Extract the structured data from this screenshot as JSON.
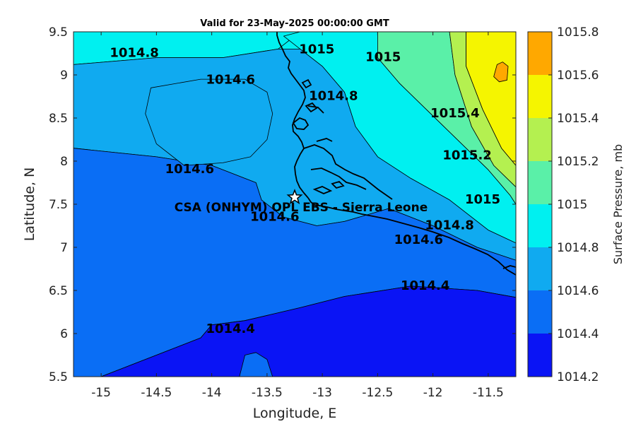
{
  "title": "Valid for 23-May-2025 00:00:00 GMT",
  "x_axis": {
    "label": "Longitude, E",
    "range": [
      -15.25,
      -11.25
    ],
    "ticks": [
      -15,
      -14.5,
      -14,
      -13.5,
      -13,
      -12.5,
      -12,
      -11.5
    ],
    "tick_labels": [
      "-15",
      "-14.5",
      "-14",
      "-13.5",
      "-13",
      "-12.5",
      "-12",
      "-11.5"
    ]
  },
  "y_axis": {
    "label": "Latitude, N",
    "range": [
      5.5,
      9.5
    ],
    "ticks": [
      5.5,
      6,
      6.5,
      7,
      7.5,
      8,
      8.5,
      9,
      9.5
    ],
    "tick_labels": [
      "5.5",
      "6",
      "6.5",
      "7",
      "7.5",
      "8",
      "8.5",
      "9",
      "9.5"
    ]
  },
  "colorbar": {
    "label": "Surface Pressure, mb",
    "levels": [
      1014.2,
      1014.4,
      1014.6,
      1014.8,
      1015,
      1015.2,
      1015.4,
      1015.6,
      1015.8
    ],
    "tick_labels": [
      "1014.2",
      "1014.4",
      "1014.6",
      "1014.8",
      "1015",
      "1015.2",
      "1015.4",
      "1015.6",
      "1015.8"
    ],
    "colors": [
      "#0a14f5",
      "#0a6ef5",
      "#10aaf0",
      "#00f0f0",
      "#5af0a8",
      "#b4f050",
      "#f5f500",
      "#ffa800",
      "#ff5a00"
    ]
  },
  "contour_labels": [
    {
      "text": "1014.8",
      "lon": -14.7,
      "lat": 9.25
    },
    {
      "text": "1015",
      "lon": -13.05,
      "lat": 9.29
    },
    {
      "text": "1015",
      "lon": -12.45,
      "lat": 9.2
    },
    {
      "text": "1014.6",
      "lon": -13.83,
      "lat": 8.94
    },
    {
      "text": "1014.8",
      "lon": -12.9,
      "lat": 8.75
    },
    {
      "text": "1015.4",
      "lon": -11.8,
      "lat": 8.55
    },
    {
      "text": "1015.2",
      "lon": -11.69,
      "lat": 8.06
    },
    {
      "text": "1014.6",
      "lon": -14.2,
      "lat": 7.9
    },
    {
      "text": "1015",
      "lon": -11.55,
      "lat": 7.55
    },
    {
      "text": "1014.8",
      "lon": -11.85,
      "lat": 7.25
    },
    {
      "text": "1014.6",
      "lon": -13.43,
      "lat": 7.35
    },
    {
      "text": "1014.6",
      "lon": -12.13,
      "lat": 7.08
    },
    {
      "text": "1014.4",
      "lon": -12.07,
      "lat": 6.55
    },
    {
      "text": "1014.4",
      "lon": -13.83,
      "lat": 6.05
    }
  ],
  "station": {
    "name": "CSA (ONHYM) OPL EBS  - Sierra Leone",
    "lon": -13.25,
    "lat": 7.58,
    "marker": "star-icon"
  },
  "regions": [
    {
      "level_index": 3,
      "points": [
        [
          -15.25,
          9.5
        ],
        [
          -13.2,
          9.5
        ],
        [
          -13.4,
          9.3
        ],
        [
          -13.9,
          9.2
        ],
        [
          -14.5,
          9.2
        ],
        [
          -15.25,
          9.12
        ]
      ]
    },
    {
      "level_index": 3,
      "points": [
        [
          -13.2,
          9.5
        ],
        [
          -12.5,
          9.5
        ],
        [
          -12.5,
          9.2
        ],
        [
          -12.3,
          8.9
        ],
        [
          -11.9,
          8.4
        ],
        [
          -11.5,
          7.9
        ],
        [
          -11.3,
          7.6
        ],
        [
          -11.25,
          7.5
        ],
        [
          -11.25,
          7.05
        ],
        [
          -11.5,
          7.2
        ],
        [
          -11.85,
          7.55
        ],
        [
          -12.2,
          7.8
        ],
        [
          -12.5,
          8.05
        ],
        [
          -12.7,
          8.4
        ],
        [
          -12.8,
          8.8
        ],
        [
          -13.0,
          9.1
        ],
        [
          -13.2,
          9.3
        ],
        [
          -13.35,
          9.45
        ]
      ]
    },
    {
      "level_index": 4,
      "points": [
        [
          -12.5,
          9.5
        ],
        [
          -12.55,
          9.5
        ],
        [
          -11.85,
          9.5
        ],
        [
          -11.8,
          9.0
        ],
        [
          -11.65,
          8.4
        ],
        [
          -11.45,
          7.95
        ],
        [
          -11.25,
          7.7
        ],
        [
          -11.25,
          7.5
        ],
        [
          -11.3,
          7.6
        ],
        [
          -11.5,
          7.9
        ],
        [
          -11.9,
          8.4
        ],
        [
          -12.3,
          8.9
        ],
        [
          -12.5,
          9.2
        ]
      ]
    },
    {
      "level_index": 5,
      "points": [
        [
          -11.85,
          9.5
        ],
        [
          -11.7,
          9.5
        ],
        [
          -11.7,
          9.1
        ],
        [
          -11.55,
          8.6
        ],
        [
          -11.38,
          8.15
        ],
        [
          -11.25,
          7.95
        ],
        [
          -11.25,
          7.7
        ],
        [
          -11.45,
          7.95
        ],
        [
          -11.65,
          8.4
        ],
        [
          -11.8,
          9.0
        ]
      ]
    },
    {
      "level_index": 6,
      "points": [
        [
          -11.7,
          9.5
        ],
        [
          -11.25,
          9.5
        ],
        [
          -11.25,
          7.95
        ],
        [
          -11.38,
          8.15
        ],
        [
          -11.55,
          8.6
        ],
        [
          -11.7,
          9.1
        ]
      ]
    },
    {
      "level_index": 7,
      "points": [
        [
          -11.42,
          9.12
        ],
        [
          -11.37,
          9.15
        ],
        [
          -11.32,
          9.1
        ],
        [
          -11.33,
          8.94
        ],
        [
          -11.4,
          8.92
        ],
        [
          -11.45,
          8.98
        ]
      ]
    },
    {
      "level_index": 2,
      "points": [
        [
          -15.25,
          9.12
        ],
        [
          -14.5,
          9.2
        ],
        [
          -13.9,
          9.2
        ],
        [
          -13.4,
          9.3
        ],
        [
          -13.2,
          9.3
        ],
        [
          -13.0,
          9.1
        ],
        [
          -12.8,
          8.8
        ],
        [
          -12.7,
          8.4
        ],
        [
          -12.5,
          8.05
        ],
        [
          -12.2,
          7.8
        ],
        [
          -11.85,
          7.55
        ],
        [
          -11.5,
          7.2
        ],
        [
          -11.25,
          7.05
        ],
        [
          -11.25,
          6.85
        ],
        [
          -11.6,
          7.0
        ],
        [
          -12.0,
          7.25
        ],
        [
          -12.4,
          7.45
        ],
        [
          -12.8,
          7.3
        ],
        [
          -13.05,
          7.25
        ],
        [
          -13.35,
          7.35
        ],
        [
          -13.55,
          7.55
        ],
        [
          -13.6,
          7.75
        ],
        [
          -14.0,
          7.95
        ],
        [
          -14.5,
          8.05
        ],
        [
          -15.25,
          8.15
        ]
      ]
    },
    {
      "level_index": 1,
      "points": [
        [
          -15.25,
          8.15
        ],
        [
          -14.5,
          8.05
        ],
        [
          -14.0,
          7.95
        ],
        [
          -13.6,
          7.75
        ],
        [
          -13.55,
          7.55
        ],
        [
          -13.35,
          7.35
        ],
        [
          -13.05,
          7.25
        ],
        [
          -12.8,
          7.3
        ],
        [
          -12.4,
          7.45
        ],
        [
          -12.0,
          7.25
        ],
        [
          -11.6,
          7.0
        ],
        [
          -11.25,
          6.85
        ],
        [
          -11.25,
          6.42
        ],
        [
          -11.6,
          6.5
        ],
        [
          -12.2,
          6.55
        ],
        [
          -12.8,
          6.43
        ],
        [
          -13.2,
          6.3
        ],
        [
          -13.7,
          6.15
        ],
        [
          -14.0,
          6.1
        ],
        [
          -14.1,
          5.95
        ],
        [
          -14.6,
          5.7
        ],
        [
          -15.0,
          5.5
        ],
        [
          -15.25,
          5.5
        ]
      ]
    },
    {
      "level_index": 2,
      "points": [
        [
          -14.55,
          8.85
        ],
        [
          -14.1,
          8.95
        ],
        [
          -13.7,
          8.95
        ],
        [
          -13.5,
          8.8
        ],
        [
          -13.45,
          8.55
        ],
        [
          -13.5,
          8.25
        ],
        [
          -13.65,
          8.05
        ],
        [
          -13.9,
          7.98
        ],
        [
          -14.25,
          7.95
        ],
        [
          -14.5,
          8.2
        ],
        [
          -14.6,
          8.55
        ]
      ]
    },
    {
      "level_index": 0,
      "points": [
        [
          -15.0,
          5.5
        ],
        [
          -14.6,
          5.7
        ],
        [
          -14.1,
          5.95
        ],
        [
          -14.0,
          6.1
        ],
        [
          -13.7,
          6.15
        ],
        [
          -13.2,
          6.3
        ],
        [
          -12.8,
          6.43
        ],
        [
          -12.2,
          6.55
        ],
        [
          -11.6,
          6.5
        ],
        [
          -11.25,
          6.42
        ],
        [
          -11.25,
          5.5
        ]
      ]
    },
    {
      "level_index": 1,
      "points": [
        [
          -13.75,
          5.5
        ],
        [
          -13.7,
          5.75
        ],
        [
          -13.6,
          5.78
        ],
        [
          -13.5,
          5.7
        ],
        [
          -13.45,
          5.5
        ]
      ]
    }
  ]
}
